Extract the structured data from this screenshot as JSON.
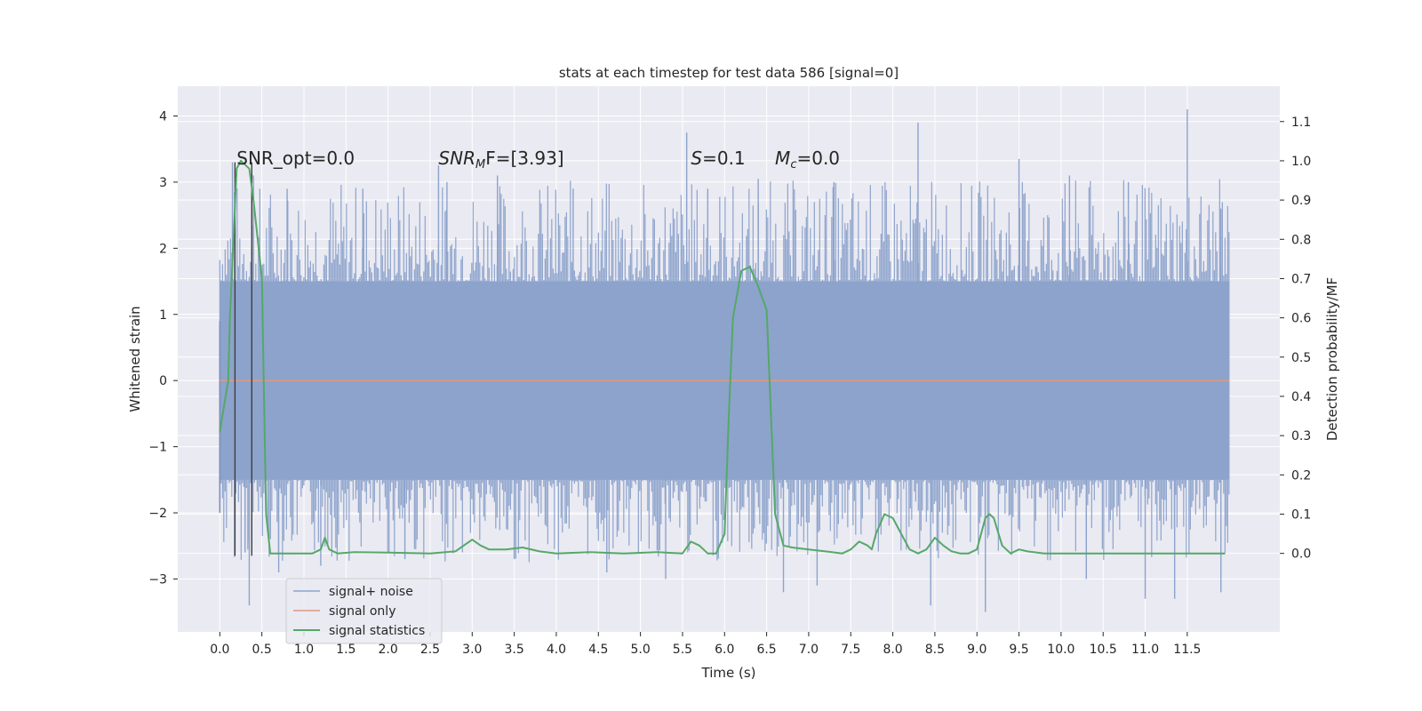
{
  "chart_data": {
    "type": "line",
    "title": "stats at each timestep for test data 586 [signal=0]",
    "xlabel": "Time (s)",
    "ylabel_left": "Whitened strain",
    "ylabel_right": "Detection probability/MF",
    "xlim": [
      -0.5,
      12.6
    ],
    "ylim_left": [
      -3.8,
      4.45
    ],
    "ylim_right": [
      -0.2,
      1.19
    ],
    "xticks": [
      "0.0",
      "0.5",
      "1.0",
      "1.5",
      "2.0",
      "2.5",
      "3.0",
      "3.5",
      "4.0",
      "4.5",
      "5.0",
      "5.5",
      "6.0",
      "6.5",
      "7.0",
      "7.5",
      "8.0",
      "8.5",
      "9.0",
      "9.5",
      "10.0",
      "10.5",
      "11.0",
      "11.5"
    ],
    "yticks_left": [
      "4",
      "3",
      "2",
      "1",
      "0",
      "−1",
      "−2",
      "−3"
    ],
    "yticks_right": [
      "1.1",
      "1.0",
      "0.9",
      "0.8",
      "0.7",
      "0.6",
      "0.5",
      "0.4",
      "0.3",
      "0.2",
      "0.1",
      "0.0"
    ],
    "grid": true,
    "legend_position": "lower-left",
    "annotations": {
      "snr_opt": "SNR_opt=0.0",
      "snr_mf_prefix": "SNR",
      "snr_mf_sub": "M",
      "snr_mf_suffix": "F=[3.93]",
      "s_prefix": "S",
      "s_suffix": "=0.1",
      "mc_prefix": "M",
      "mc_sub": "c",
      "mc_suffix": "=0.0"
    },
    "series": [
      {
        "name": "signal+ noise",
        "color": "#8da3cc",
        "axis": "left",
        "t_range": [
          0.0,
          12.0
        ],
        "band_upper": 1.5,
        "band_lower": -1.5,
        "peak_high": [
          [
            0.15,
            3.3
          ],
          [
            0.4,
            3.1
          ],
          [
            0.8,
            2.9
          ],
          [
            1.7,
            2.9
          ],
          [
            2.6,
            3.25
          ],
          [
            2.7,
            3.0
          ],
          [
            3.3,
            3.1
          ],
          [
            4.2,
            2.9
          ],
          [
            5.55,
            3.75
          ],
          [
            5.8,
            2.9
          ],
          [
            6.4,
            3.05
          ],
          [
            7.3,
            3.0
          ],
          [
            8.3,
            3.9
          ],
          [
            9.5,
            3.35
          ],
          [
            10.1,
            3.1
          ],
          [
            10.8,
            3.0
          ],
          [
            11.5,
            4.1
          ],
          [
            11.9,
            2.6
          ]
        ],
        "peak_low": [
          [
            0.3,
            -2.6
          ],
          [
            0.35,
            -3.4
          ],
          [
            0.7,
            -2.9
          ],
          [
            1.2,
            -2.8
          ],
          [
            2.2,
            -2.7
          ],
          [
            3.5,
            -2.7
          ],
          [
            4.6,
            -2.9
          ],
          [
            5.3,
            -3.0
          ],
          [
            6.7,
            -3.2
          ],
          [
            7.1,
            -3.1
          ],
          [
            8.45,
            -3.4
          ],
          [
            9.1,
            -3.5
          ],
          [
            10.3,
            -3.0
          ],
          [
            11.0,
            -3.3
          ],
          [
            11.35,
            -3.3
          ],
          [
            11.9,
            -3.2
          ]
        ]
      },
      {
        "name": "signal only",
        "color": "#dd9a80",
        "axis": "left",
        "x": [
          0.0,
          12.0
        ],
        "y": [
          0.0,
          0.0
        ]
      },
      {
        "name": "signal statistics",
        "color": "#55a868",
        "axis": "right",
        "x": [
          0.0,
          0.1,
          0.12,
          0.2,
          0.25,
          0.3,
          0.35,
          0.4,
          0.5,
          0.55,
          0.6,
          0.65,
          1.0,
          1.1,
          1.2,
          1.25,
          1.3,
          1.4,
          1.6,
          2.0,
          2.5,
          2.8,
          2.9,
          3.0,
          3.1,
          3.2,
          3.4,
          3.6,
          3.8,
          4.0,
          4.4,
          4.8,
          5.2,
          5.5,
          5.6,
          5.7,
          5.8,
          5.9,
          6.0,
          6.05,
          6.1,
          6.2,
          6.3,
          6.4,
          6.5,
          6.6,
          6.7,
          6.8,
          7.0,
          7.2,
          7.4,
          7.5,
          7.6,
          7.7,
          7.75,
          7.8,
          7.9,
          8.0,
          8.1,
          8.2,
          8.3,
          8.4,
          8.5,
          8.6,
          8.7,
          8.8,
          8.9,
          9.0,
          9.1,
          9.15,
          9.2,
          9.3,
          9.4,
          9.5,
          9.6,
          9.8,
          10.0,
          10.5,
          11.0,
          11.5,
          11.95
        ],
        "y": [
          0.31,
          0.44,
          0.6,
          0.98,
          1.0,
          0.99,
          0.98,
          0.9,
          0.7,
          0.1,
          0.0,
          0.0,
          0.0,
          0.0,
          0.01,
          0.04,
          0.01,
          0.0,
          0.003,
          0.002,
          0.0,
          0.005,
          0.02,
          0.035,
          0.02,
          0.01,
          0.01,
          0.015,
          0.005,
          0.0,
          0.003,
          0.0,
          0.003,
          0.0,
          0.03,
          0.02,
          0.0,
          0.0,
          0.05,
          0.35,
          0.6,
          0.72,
          0.73,
          0.68,
          0.62,
          0.1,
          0.02,
          0.015,
          0.01,
          0.005,
          0.0,
          0.01,
          0.03,
          0.02,
          0.01,
          0.05,
          0.1,
          0.09,
          0.05,
          0.01,
          0.0,
          0.01,
          0.04,
          0.02,
          0.005,
          0.0,
          0.0,
          0.01,
          0.09,
          0.1,
          0.09,
          0.02,
          0.0,
          0.01,
          0.005,
          0.0,
          0.0,
          0.0,
          0.0,
          0.0,
          0.0
        ]
      }
    ],
    "markers": {
      "color": "#3d3d3d",
      "x": [
        0.18,
        0.38
      ],
      "ytop": [
        3.3,
        3.3
      ],
      "ybottom": [
        -2.65,
        -2.65
      ]
    }
  }
}
